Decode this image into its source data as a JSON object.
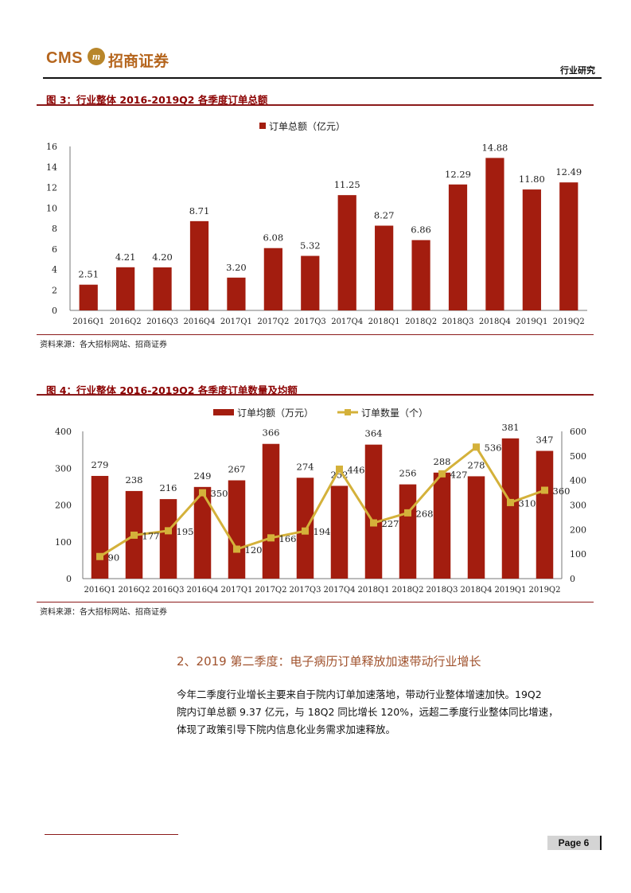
{
  "header": {
    "logo_text": "CMS",
    "logo_badge": "m",
    "company": "招商证券",
    "section": "行业研究"
  },
  "figure3": {
    "title": "图 3：行业整体 2016-2019Q2 各季度订单总额",
    "source": "资料来源：各大招标网站、招商证券"
  },
  "figure4": {
    "title": "图 4：行业整体 2016-2019Q2 各季度订单数量及均额",
    "source": "资料来源：各大招标网站、招商证券"
  },
  "section": {
    "heading": "2、2019 第二季度：电子病历订单释放加速带动行业增长",
    "lines": [
      "今年二季度行业增长主要来自于院内订单加速落地，带动行业整体增速加快。19Q2",
      "院内订单总额 9.37 亿元，与 18Q2 同比增长 120%，远超二季度行业整体同比增速，",
      "体现了政策引导下院内信息化业务需求加速释放。"
    ]
  },
  "footer": {
    "page": "Page 6"
  },
  "colors": {
    "bar": "#a31d0f",
    "line": "#d4b13a",
    "accent": "#8b0000"
  },
  "chart_data": [
    {
      "type": "bar",
      "categories": [
        "2016Q1",
        "2016Q2",
        "2016Q3",
        "2016Q4",
        "2017Q1",
        "2017Q2",
        "2017Q3",
        "2017Q4",
        "2018Q1",
        "2018Q2",
        "2018Q3",
        "2018Q4",
        "2019Q1",
        "2019Q2"
      ],
      "series": [
        {
          "name": "订单总额（亿元）",
          "values": [
            2.51,
            4.21,
            4.2,
            8.71,
            3.2,
            6.08,
            5.32,
            11.25,
            8.27,
            6.86,
            12.29,
            14.88,
            11.8,
            12.49
          ],
          "labels": [
            "2.51",
            "4.21",
            "4.20",
            "8.71",
            "3.20",
            "6.08",
            "5.32",
            "11.25",
            "8.27",
            "6.86",
            "12.29",
            "14.88",
            "11.80",
            "12.49"
          ]
        }
      ],
      "ylim": [
        0,
        16
      ],
      "yticks": [
        "0",
        "2",
        "4",
        "6",
        "8",
        "10",
        "12",
        "14",
        "16"
      ],
      "legend": "top-center",
      "grid": false
    },
    {
      "type": "bar",
      "categories": [
        "2016Q1",
        "2016Q2",
        "2016Q3",
        "2016Q4",
        "2017Q1",
        "2017Q2",
        "2017Q3",
        "2017Q4",
        "2018Q1",
        "2018Q2",
        "2018Q3",
        "2018Q4",
        "2019Q1",
        "2019Q2"
      ],
      "series": [
        {
          "name": "订单均额（万元）",
          "axis": "left",
          "values": [
            279,
            238,
            216,
            249,
            267,
            366,
            274,
            252,
            364,
            256,
            288,
            278,
            381,
            347
          ]
        },
        {
          "name": "订单数量（个）",
          "axis": "right",
          "type": "line",
          "values": [
            90,
            177,
            195,
            350,
            120,
            166,
            194,
            446,
            227,
            268,
            427,
            536,
            310,
            360
          ]
        }
      ],
      "ylim": [
        0,
        400
      ],
      "yticks": [
        "0",
        "100",
        "200",
        "300",
        "400"
      ],
      "y2lim": [
        0,
        600
      ],
      "y2ticks": [
        "0",
        "100",
        "200",
        "300",
        "400",
        "500",
        "600"
      ],
      "legend": "top-center",
      "grid": false
    }
  ]
}
